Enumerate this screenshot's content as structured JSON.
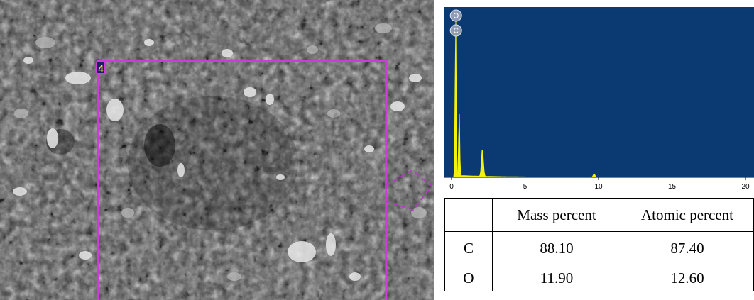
{
  "sem_image": {
    "region_label": "4",
    "frame_color": "#d03adb"
  },
  "spectrum": {
    "background_color": "#0b3a72",
    "trace_color": "#f2f20a",
    "x_ticks": [
      "0",
      "5",
      "10",
      "15",
      "20"
    ],
    "peaks": [
      {
        "symbol": "O"
      },
      {
        "symbol": "C"
      }
    ]
  },
  "table": {
    "headers": [
      "",
      "Mass percent",
      "Atomic percent"
    ],
    "rows": [
      {
        "element": "C",
        "mass": "88.10",
        "atomic": "87.40"
      },
      {
        "element": "O",
        "mass": "11.90",
        "atomic": "12.60"
      }
    ]
  },
  "chart_data": {
    "type": "line",
    "title": "",
    "xlabel": "",
    "ylabel": "",
    "xlim": [
      0,
      20
    ],
    "x_ticks": [
      0,
      5,
      10,
      15,
      20
    ],
    "peaks": [
      {
        "label": "C",
        "x": 0.28,
        "relative_intensity": 1.0
      },
      {
        "label": "O",
        "x": 0.52,
        "relative_intensity": 0.4
      },
      {
        "label": "",
        "x": 2.1,
        "relative_intensity": 0.17
      },
      {
        "label": "",
        "x": 9.7,
        "relative_intensity": 0.02
      }
    ]
  }
}
